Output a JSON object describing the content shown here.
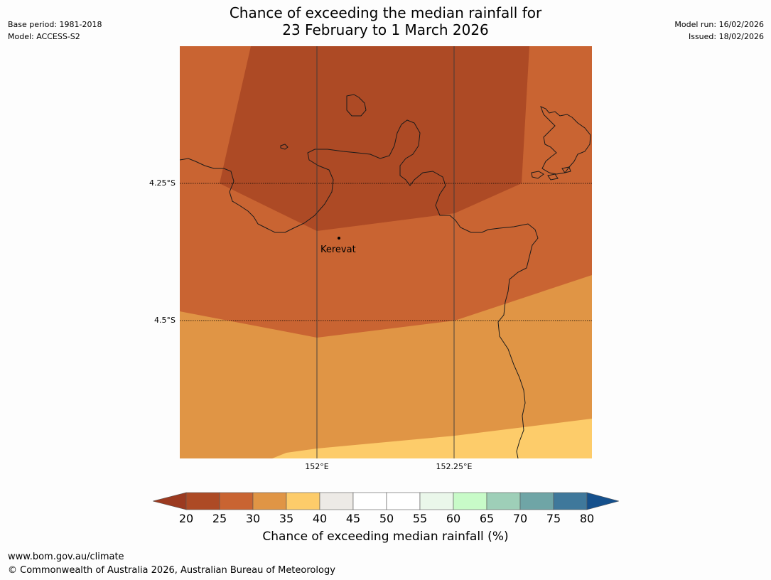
{
  "title": {
    "line1": "Chance of exceeding the median rainfall for",
    "line2": "23 February to 1 March 2026"
  },
  "meta_left": {
    "base_period": "Base period: 1981-2018",
    "model": "Model: ACCESS-S2"
  },
  "meta_right": {
    "model_run": "Model run: 16/02/2026",
    "issued": "Issued: 18/02/2026"
  },
  "map": {
    "place_label": "Kerevat",
    "lat_labels": [
      "4.25°S",
      "4.5°S"
    ],
    "lon_labels": [
      "152°E",
      "152.25°E"
    ],
    "colors": {
      "dark_brown": "#ad4a25",
      "orange_brown": "#c96432",
      "light_orange": "#e09545",
      "yellow": "#fdcc6a"
    }
  },
  "colorbar": {
    "ticks": [
      "20",
      "25",
      "30",
      "35",
      "40",
      "45",
      "50",
      "55",
      "60",
      "65",
      "70",
      "75",
      "80"
    ],
    "colors": [
      "#9b3a20",
      "#ad4a25",
      "#c96432",
      "#e09545",
      "#fdcc6a",
      "#edeae6",
      "#ffffff",
      "#ffffff",
      "#eaf7ea",
      "#c8fbc8",
      "#9ecfb8",
      "#6fa5a6",
      "#3f789b",
      "#15508c"
    ],
    "label": "Chance of exceeding median rainfall (%)"
  },
  "footer": {
    "url": "www.bom.gov.au/climate",
    "copyright": "© Commonwealth of Australia 2026, Australian Bureau of Meteorology"
  }
}
